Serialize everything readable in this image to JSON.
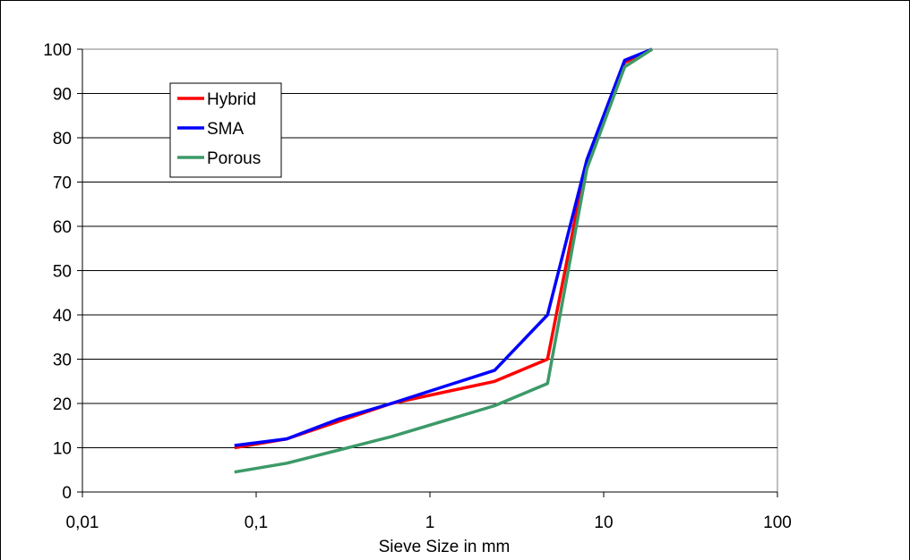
{
  "chart_data": {
    "type": "line",
    "title": "",
    "xlabel": "Sieve Size in mm",
    "ylabel": "",
    "x_scale": "log",
    "xlim": [
      0.01,
      100
    ],
    "ylim": [
      0,
      100
    ],
    "grid": "horizontal",
    "legend_position": "top-left",
    "x_tick_labels": [
      "0,01",
      "0,1",
      "1",
      "10",
      "100"
    ],
    "y_tick_labels": [
      "0",
      "10",
      "20",
      "30",
      "40",
      "50",
      "60",
      "70",
      "80",
      "90",
      "100"
    ],
    "series": [
      {
        "name": "Hybrid",
        "color": "#ff0000",
        "x": [
          0.075,
          0.15,
          0.3,
          0.6,
          2.36,
          4.75,
          8,
          13.2,
          19
        ],
        "y": [
          10,
          12,
          16,
          20,
          25,
          30,
          75,
          97,
          100
        ]
      },
      {
        "name": "SMA",
        "color": "#0000ff",
        "x": [
          0.075,
          0.15,
          0.3,
          0.6,
          2.36,
          4.75,
          8,
          13.2,
          19
        ],
        "y": [
          10.5,
          12,
          16.5,
          20,
          27.5,
          40,
          75,
          97.5,
          100
        ]
      },
      {
        "name": "Porous",
        "color": "#3c9a68",
        "x": [
          0.075,
          0.15,
          0.3,
          0.6,
          2.36,
          4.75,
          8,
          13.2,
          19
        ],
        "y": [
          4.5,
          6.5,
          9.5,
          12.5,
          19.5,
          24.5,
          73,
          96,
          100
        ]
      }
    ]
  }
}
